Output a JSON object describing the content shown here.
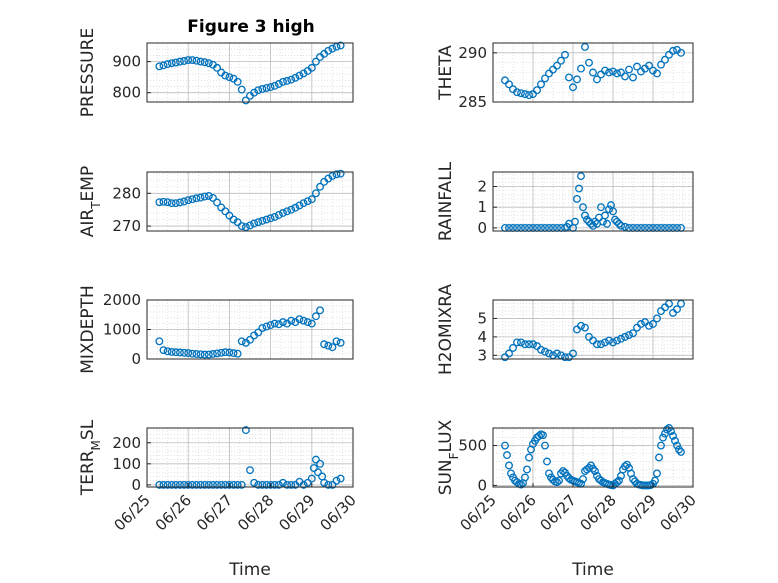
{
  "figure": {
    "title": "Figure 3 high"
  },
  "chart_data": [
    {
      "type": "scatter",
      "ylabel": "PRESSURE",
      "ylim": [
        770,
        960
      ],
      "yticks": [
        {
          "v": 800,
          "label": "800"
        },
        {
          "v": 900,
          "label": "900"
        }
      ],
      "xlim": [
        0,
        5
      ],
      "xticks": [],
      "xlabel": "",
      "grid": true,
      "x": [
        0.3,
        0.4,
        0.5,
        0.6,
        0.7,
        0.8,
        0.9,
        1.0,
        1.1,
        1.2,
        1.3,
        1.4,
        1.5,
        1.6,
        1.7,
        1.8,
        1.9,
        2.0,
        2.1,
        2.2,
        2.3,
        2.4,
        2.5,
        2.6,
        2.7,
        2.8,
        2.9,
        3.0,
        3.1,
        3.2,
        3.3,
        3.4,
        3.5,
        3.6,
        3.7,
        3.8,
        3.9,
        4.0,
        4.1,
        4.2,
        4.3,
        4.4,
        4.5,
        4.6,
        4.7
      ],
      "y": [
        885,
        888,
        892,
        895,
        897,
        900,
        902,
        905,
        905,
        903,
        900,
        898,
        895,
        890,
        880,
        865,
        855,
        850,
        845,
        835,
        810,
        775,
        790,
        800,
        808,
        812,
        815,
        818,
        822,
        828,
        835,
        838,
        842,
        848,
        855,
        862,
        870,
        880,
        900,
        915,
        925,
        935,
        942,
        948,
        952
      ]
    },
    {
      "type": "scatter",
      "ylabel": "THETA",
      "ylim": [
        285,
        291
      ],
      "yticks": [
        {
          "v": 285,
          "label": "285"
        },
        {
          "v": 290,
          "label": "290"
        }
      ],
      "xlim": [
        0,
        5
      ],
      "xticks": [],
      "xlabel": "",
      "grid": true,
      "x": [
        0.3,
        0.4,
        0.5,
        0.6,
        0.7,
        0.8,
        0.9,
        1.0,
        1.1,
        1.2,
        1.3,
        1.4,
        1.5,
        1.6,
        1.7,
        1.8,
        1.9,
        2.0,
        2.1,
        2.2,
        2.3,
        2.4,
        2.5,
        2.6,
        2.7,
        2.8,
        2.9,
        3.0,
        3.1,
        3.2,
        3.3,
        3.4,
        3.5,
        3.6,
        3.7,
        3.8,
        3.9,
        4.0,
        4.1,
        4.2,
        4.3,
        4.4,
        4.5,
        4.6,
        4.7
      ],
      "y": [
        287.2,
        286.8,
        286.3,
        286.0,
        285.9,
        285.8,
        285.7,
        285.8,
        286.2,
        286.8,
        287.4,
        287.9,
        288.3,
        288.7,
        289.2,
        289.8,
        287.5,
        286.5,
        287.3,
        288.4,
        290.6,
        289.0,
        288.0,
        287.3,
        287.8,
        288.2,
        288.0,
        288.1,
        287.9,
        288.0,
        287.6,
        288.3,
        287.5,
        288.6,
        288.1,
        288.4,
        288.7,
        288.2,
        287.9,
        288.8,
        289.3,
        289.8,
        290.2,
        290.3,
        290.0
      ]
    },
    {
      "type": "scatter",
      "ylabel": "AIR_TEMP",
      "ylim": [
        268.5,
        286.5
      ],
      "yticks": [
        {
          "v": 270,
          "label": "270"
        },
        {
          "v": 280,
          "label": "280"
        }
      ],
      "xlim": [
        0,
        5
      ],
      "xticks": [],
      "xlabel": "",
      "grid": true,
      "x": [
        0.3,
        0.4,
        0.5,
        0.6,
        0.7,
        0.8,
        0.9,
        1.0,
        1.1,
        1.2,
        1.3,
        1.4,
        1.5,
        1.6,
        1.7,
        1.8,
        1.9,
        2.0,
        2.1,
        2.2,
        2.3,
        2.4,
        2.5,
        2.6,
        2.7,
        2.8,
        2.9,
        3.0,
        3.1,
        3.2,
        3.3,
        3.4,
        3.5,
        3.6,
        3.7,
        3.8,
        3.9,
        4.0,
        4.1,
        4.2,
        4.3,
        4.4,
        4.5,
        4.6,
        4.7
      ],
      "y": [
        277.3,
        277.4,
        277.3,
        277.0,
        277.0,
        277.2,
        277.5,
        277.9,
        278.2,
        278.5,
        278.7,
        279.0,
        279.2,
        278.6,
        277.2,
        275.7,
        274.5,
        273.2,
        272.0,
        271.2,
        270.0,
        269.7,
        270.2,
        270.8,
        271.2,
        271.6,
        272.0,
        272.4,
        272.8,
        273.4,
        274.0,
        274.5,
        275.0,
        275.6,
        276.3,
        277.0,
        277.6,
        278.2,
        280.0,
        282.0,
        283.5,
        284.5,
        285.3,
        285.8,
        286.0
      ]
    },
    {
      "type": "scatter",
      "ylabel": "RAINFALL",
      "ylim": [
        -0.15,
        2.7
      ],
      "yticks": [
        {
          "v": 0,
          "label": "0"
        },
        {
          "v": 1,
          "label": "1"
        },
        {
          "v": 2,
          "label": "2"
        }
      ],
      "xlim": [
        0,
        5
      ],
      "xticks": [],
      "xlabel": "",
      "grid": true,
      "x": [
        0.3,
        0.4,
        0.5,
        0.6,
        0.7,
        0.8,
        0.9,
        1.0,
        1.1,
        1.2,
        1.3,
        1.4,
        1.5,
        1.6,
        1.7,
        1.8,
        1.85,
        1.9,
        2.0,
        2.05,
        2.1,
        2.15,
        2.2,
        2.25,
        2.3,
        2.35,
        2.4,
        2.45,
        2.5,
        2.55,
        2.6,
        2.65,
        2.7,
        2.75,
        2.8,
        2.85,
        2.9,
        2.95,
        3.0,
        3.05,
        3.1,
        3.15,
        3.2,
        3.3,
        3.4,
        3.5,
        3.6,
        3.7,
        3.8,
        3.9,
        4.0,
        4.1,
        4.2,
        4.3,
        4.4,
        4.5,
        4.6,
        4.7
      ],
      "y": [
        0,
        0,
        0,
        0,
        0,
        0,
        0,
        0,
        0,
        0,
        0,
        0,
        0,
        0,
        0,
        0,
        0.05,
        0.2,
        0,
        0.3,
        1.4,
        1.9,
        2.5,
        1.0,
        0.6,
        0.4,
        0.3,
        0.2,
        0.1,
        0.3,
        0.2,
        0.5,
        1.0,
        0.3,
        0.6,
        0.2,
        0.9,
        1.1,
        0.8,
        0.4,
        0.3,
        0.2,
        0.1,
        0.05,
        0,
        0,
        0,
        0,
        0,
        0,
        0,
        0,
        0,
        0,
        0,
        0,
        0,
        0
      ]
    },
    {
      "type": "scatter",
      "ylabel": "MIXDEPTH",
      "ylim": [
        0,
        2000
      ],
      "yticks": [
        {
          "v": 0,
          "label": "0"
        },
        {
          "v": 1000,
          "label": "1000"
        },
        {
          "v": 2000,
          "label": "2000"
        }
      ],
      "xlim": [
        0,
        5
      ],
      "xticks": [],
      "xlabel": "",
      "grid": true,
      "x": [
        0.3,
        0.4,
        0.5,
        0.6,
        0.7,
        0.8,
        0.9,
        1.0,
        1.1,
        1.2,
        1.3,
        1.4,
        1.5,
        1.6,
        1.7,
        1.8,
        1.9,
        2.0,
        2.1,
        2.2,
        2.3,
        2.4,
        2.5,
        2.6,
        2.7,
        2.8,
        2.9,
        3.0,
        3.1,
        3.2,
        3.3,
        3.4,
        3.5,
        3.6,
        3.7,
        3.8,
        3.9,
        4.0,
        4.1,
        4.2,
        4.3,
        4.4,
        4.5,
        4.6,
        4.7
      ],
      "y": [
        600,
        300,
        260,
        240,
        230,
        220,
        210,
        200,
        180,
        170,
        160,
        150,
        150,
        170,
        190,
        210,
        230,
        220,
        200,
        180,
        600,
        550,
        650,
        800,
        900,
        1050,
        1100,
        1150,
        1200,
        1180,
        1250,
        1200,
        1300,
        1250,
        1350,
        1300,
        1250,
        1200,
        1450,
        1650,
        500,
        450,
        400,
        600,
        550
      ]
    },
    {
      "type": "scatter",
      "ylabel": "H2OMIXRA",
      "ylim": [
        2.8,
        6.0
      ],
      "yticks": [
        {
          "v": 3,
          "label": "3"
        },
        {
          "v": 4,
          "label": "4"
        },
        {
          "v": 5,
          "label": "5"
        }
      ],
      "xlim": [
        0,
        5
      ],
      "xticks": [],
      "xlabel": "",
      "grid": true,
      "x": [
        0.3,
        0.4,
        0.5,
        0.6,
        0.7,
        0.8,
        0.9,
        1.0,
        1.1,
        1.2,
        1.3,
        1.4,
        1.5,
        1.6,
        1.7,
        1.8,
        1.9,
        2.0,
        2.1,
        2.2,
        2.3,
        2.4,
        2.5,
        2.6,
        2.7,
        2.8,
        2.9,
        3.0,
        3.1,
        3.2,
        3.3,
        3.4,
        3.5,
        3.6,
        3.7,
        3.8,
        3.9,
        4.0,
        4.1,
        4.2,
        4.3,
        4.4,
        4.5,
        4.6,
        4.7
      ],
      "y": [
        2.9,
        3.1,
        3.4,
        3.7,
        3.7,
        3.6,
        3.6,
        3.6,
        3.5,
        3.3,
        3.2,
        3.1,
        3.0,
        3.1,
        3.0,
        2.9,
        2.9,
        3.1,
        4.4,
        4.6,
        4.5,
        4.0,
        3.8,
        3.6,
        3.6,
        3.7,
        3.8,
        3.7,
        3.8,
        3.9,
        4.0,
        4.1,
        4.2,
        4.5,
        4.7,
        4.8,
        4.6,
        4.7,
        5.0,
        5.4,
        5.6,
        5.8,
        5.3,
        5.5,
        5.8
      ]
    },
    {
      "type": "scatter",
      "ylabel": "TERR_MSL",
      "ylim": [
        -10,
        270
      ],
      "yticks": [
        {
          "v": 0,
          "label": "0"
        },
        {
          "v": 100,
          "label": "100"
        },
        {
          "v": 200,
          "label": "200"
        }
      ],
      "xlim": [
        0,
        5
      ],
      "xticks": [
        {
          "v": 0,
          "label": "06/25"
        },
        {
          "v": 1,
          "label": "06/26"
        },
        {
          "v": 2,
          "label": "06/27"
        },
        {
          "v": 3,
          "label": "06/28"
        },
        {
          "v": 4,
          "label": "06/29"
        },
        {
          "v": 5,
          "label": "06/30"
        }
      ],
      "xlabel": "Time",
      "grid": true,
      "x": [
        0.3,
        0.4,
        0.5,
        0.6,
        0.7,
        0.8,
        0.9,
        1.0,
        1.1,
        1.2,
        1.3,
        1.4,
        1.5,
        1.6,
        1.7,
        1.8,
        1.9,
        2.0,
        2.1,
        2.2,
        2.3,
        2.4,
        2.5,
        2.6,
        2.7,
        2.8,
        2.9,
        3.0,
        3.1,
        3.2,
        3.3,
        3.4,
        3.5,
        3.6,
        3.7,
        3.8,
        3.9,
        4.0,
        4.05,
        4.1,
        4.15,
        4.2,
        4.25,
        4.3,
        4.4,
        4.5,
        4.6,
        4.7
      ],
      "y": [
        0,
        0,
        0,
        0,
        0,
        0,
        0,
        0,
        0,
        0,
        0,
        0,
        0,
        0,
        0,
        0,
        0,
        0,
        0,
        0,
        0,
        260,
        70,
        10,
        0,
        0,
        0,
        0,
        0,
        0,
        10,
        0,
        0,
        0,
        15,
        0,
        10,
        30,
        80,
        120,
        60,
        100,
        40,
        10,
        0,
        0,
        20,
        30
      ]
    },
    {
      "type": "scatter",
      "ylabel": "SUN_FLUX",
      "ylim": [
        -20,
        720
      ],
      "yticks": [
        {
          "v": 0,
          "label": "0"
        },
        {
          "v": 500,
          "label": "500"
        }
      ],
      "xlim": [
        0,
        5
      ],
      "xticks": [
        {
          "v": 0,
          "label": "06/25"
        },
        {
          "v": 1,
          "label": "06/26"
        },
        {
          "v": 2,
          "label": "06/27"
        },
        {
          "v": 3,
          "label": "06/28"
        },
        {
          "v": 4,
          "label": "06/29"
        },
        {
          "v": 5,
          "label": "06/30"
        }
      ],
      "xlabel": "Time",
      "grid": true,
      "x": [
        0.3,
        0.35,
        0.4,
        0.45,
        0.5,
        0.55,
        0.6,
        0.65,
        0.7,
        0.75,
        0.8,
        0.85,
        0.9,
        0.95,
        1.0,
        1.05,
        1.1,
        1.15,
        1.2,
        1.25,
        1.3,
        1.35,
        1.4,
        1.45,
        1.5,
        1.55,
        1.6,
        1.65,
        1.7,
        1.75,
        1.8,
        1.85,
        1.9,
        1.95,
        2.0,
        2.05,
        2.1,
        2.15,
        2.2,
        2.25,
        2.3,
        2.35,
        2.4,
        2.45,
        2.5,
        2.55,
        2.6,
        2.65,
        2.7,
        2.75,
        2.8,
        2.85,
        2.9,
        2.95,
        3.0,
        3.05,
        3.1,
        3.15,
        3.2,
        3.25,
        3.3,
        3.35,
        3.4,
        3.45,
        3.5,
        3.55,
        3.6,
        3.65,
        3.7,
        3.75,
        3.8,
        3.85,
        3.9,
        3.95,
        4.0,
        4.05,
        4.1,
        4.15,
        4.2,
        4.25,
        4.3,
        4.35,
        4.4,
        4.45,
        4.5,
        4.55,
        4.6,
        4.65,
        4.7
      ],
      "y": [
        500,
        380,
        250,
        150,
        100,
        60,
        40,
        20,
        10,
        30,
        100,
        200,
        350,
        450,
        520,
        560,
        600,
        620,
        640,
        630,
        500,
        300,
        150,
        100,
        70,
        50,
        40,
        60,
        150,
        180,
        160,
        120,
        90,
        70,
        60,
        50,
        40,
        30,
        20,
        80,
        180,
        200,
        220,
        250,
        210,
        180,
        120,
        80,
        60,
        40,
        30,
        20,
        10,
        5,
        0,
        20,
        40,
        60,
        120,
        200,
        240,
        260,
        220,
        150,
        80,
        50,
        20,
        10,
        5,
        0,
        0,
        0,
        0,
        5,
        20,
        60,
        150,
        350,
        500,
        600,
        650,
        700,
        720,
        680,
        620,
        560,
        500,
        450,
        420
      ]
    }
  ]
}
